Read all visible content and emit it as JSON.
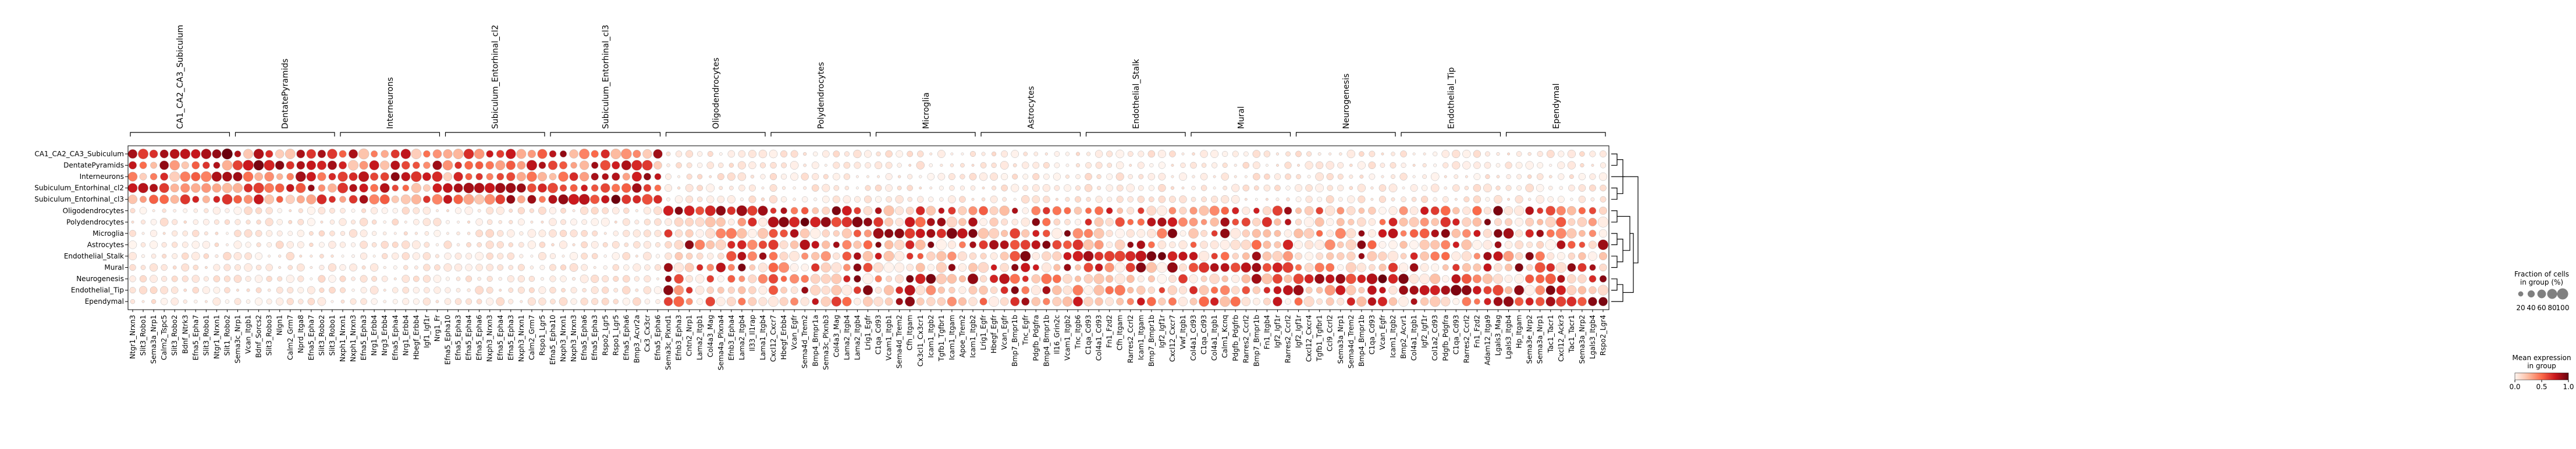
{
  "chart_data": {
    "type": "dotplot",
    "title": "",
    "xlabel": "",
    "ylabel": "",
    "rows": [
      "CA1_CA2_CA3_Subiculum",
      "DentatePyramids",
      "Interneurons",
      "Subiculum_Entorhinal_cl2",
      "Subiculum_Entorhinal_cl3",
      "Oligodendrocytes",
      "Polydendrocytes",
      "Microglia",
      "Astrocytes",
      "Endothelial_Stalk",
      "Mural",
      "Neurogenesis",
      "Endothelial_Tip",
      "Ependymal"
    ],
    "groups": [
      {
        "name": "CA1_CA2_CA3_Subiculum",
        "source": 0,
        "genes": [
          "Ntgr1_Nrxn3",
          "Slit3_Robo1",
          "Sema3a_Nrp1",
          "Calm2_Tspc5",
          "Slit3_Robo2",
          "Bdnf_Ntrk3",
          "Efna5_Epha7",
          "Slit3_Robo1",
          "Ntgr1_Nrxn1",
          "Slit1_Robo2"
        ]
      },
      {
        "name": "DentatePyramids",
        "source": 1,
        "genes": [
          "Sema3c_Nrp1",
          "Vcan_Itgb1",
          "Bdnf_Sorcs2",
          "Slit3_Robo3",
          "Nlgn1",
          "Calm2_Grm7",
          "Nprd_Itga8",
          "Efna5_Epha7",
          "Slit3_Robo2",
          "Slit3_Robo1"
        ]
      },
      {
        "name": "Interneurons",
        "source": 2,
        "genes": [
          "Nxph1_Nrxn1",
          "Nxph1_Nrxn3",
          "Efna5_Epha3",
          "Nrg1_Erbb4",
          "Nrg3_Erbb4",
          "Efna5_Epha4",
          "Nrg1_Erbb4",
          "Hbegf_Erbb4",
          "Igf1_Igf1r",
          "Nrg1_Fr"
        ]
      },
      {
        "name": "Subiculum_Entorhinal_cl2",
        "source": 3,
        "genes": [
          "Efna5_Epha10",
          "Efna5_Epha3",
          "Efna5_Epha4",
          "Efna5_Epha6",
          "Nxph3_Nrxn3",
          "Efna5_Epha4",
          "Efna5_Epha3",
          "Nxph3_Nrxn1",
          "Calm2_Grm7",
          "Rspo1_Lgr5"
        ]
      },
      {
        "name": "Subiculum_Entorhinal_cl3",
        "source": 4,
        "genes": [
          "Efna5_Epha10",
          "Nxph3_Nrxn1",
          "Nxph3_Nrxn3",
          "Efna5_Epha6",
          "Efna5_Epha3",
          "Rspo2_Lgr5",
          "Rspo1_Lgr5",
          "Efna5_Epha6",
          "Bmp3_Acvr2a",
          "Cx3_Cx3cr",
          "Efna5_Epha6"
        ]
      },
      {
        "name": "Oligodendrocytes",
        "source": 5,
        "genes": [
          "Sema3c_Plxnd1",
          "Efnb3_Epha3",
          "Cntn2_Nrp1",
          "Lama2_Itgb1",
          "Col4a3_Mag",
          "Sema4a_Plxna4",
          "Efnb3_Epha4",
          "Lama2_Itgb4",
          "Il33_Il1rap",
          "Lama1_Itgb4"
        ]
      },
      {
        "name": "Polydendrocytes",
        "source": 6,
        "genes": [
          "Cxcl12_Cxcr7",
          "Hbegf_Erbb4",
          "Vcan_Egfr",
          "Sema4d_Trem2",
          "Bmp4_Bmpr1a",
          "Sema3c_Plxnb3",
          "Col4a3_Mag",
          "Lama2_Itgb4",
          "Lama2_Itgb4",
          "Lrig1_Egfr"
        ]
      },
      {
        "name": "Microglia",
        "source": 7,
        "genes": [
          "C1qa_Cd93",
          "Vcam1_Itgb1",
          "Sema4d_Trem2",
          "Cfh_Itgam",
          "Cx3cl1_Cx3cr1",
          "Icam1_Itgb2",
          "Tgfb1_Tgfbr1",
          "Icam1_Itgam",
          "Apoe_Trem2",
          "Icam1_Itgb2"
        ]
      },
      {
        "name": "Astrocytes",
        "source": 8,
        "genes": [
          "Lrig1_Egfr",
          "Hbegf_Egfr",
          "Vcan_Egfr",
          "Bmp7_Bmpr1b",
          "Tnc_Egfr",
          "Pdgfb_Pdgfra",
          "Bmp4_Bmpr1b",
          "Il16_Grin2c",
          "Vcam1_Itgb2",
          "Tnc_Itgb6"
        ]
      },
      {
        "name": "Endothelial_Stalk",
        "source": 9,
        "genes": [
          "C1qa_Cd93",
          "Col4a1_Cd93",
          "Fn1_Fzd2",
          "Cfh_Itgam",
          "Rarres2_Ccrl2",
          "Icam1_Itgam",
          "Bmp7_Bmpr1b",
          "Igf2_Igf1r",
          "Cxcl12_Cxcr7",
          "Vwf_Itgb1"
        ]
      },
      {
        "name": "Mural",
        "source": 10,
        "genes": [
          "Col4a1_Cd93",
          "C1qa_Cd93",
          "Col4a1_Itgb1",
          "Calm1_Kcnq",
          "Pdgfb_Pdgfrb",
          "Rarres2_Ccrl2",
          "Bmp7_Bmpr1b",
          "Fn1_Itgb4",
          "Igf2_Igf1r",
          "Rarres2_Ccrl2"
        ]
      },
      {
        "name": "Neurogenesis",
        "source": 11,
        "genes": [
          "Igf2_Igf1r",
          "Cxcl12_Cxcr4",
          "Tgfb1_Tgfbr1",
          "Ccl9_Ccrl2",
          "Sema3a_Nrp1",
          "Sema4d_Trem2",
          "Bmp4_Bmpr1b",
          "C1qa_Cd93",
          "Vcan_Egfr",
          "Icam1_Itgb2"
        ]
      },
      {
        "name": "Endothelial_Tip",
        "source": 12,
        "genes": [
          "Bmp2_Acvr1",
          "Col4a1_Itgb1",
          "Igf2_Igf1r",
          "Col1a2_Cd93",
          "Pdgfb_Pdgfra",
          "C1qa_Cd93",
          "Rarres2_Ccrl2",
          "Fn1_Fzd2",
          "Adam12_Itga9",
          "Lgals3_Mag"
        ]
      },
      {
        "name": "Ependymal",
        "source": 13,
        "genes": [
          "Lgals3_Itgb4",
          "Hp_Itgam",
          "Sema3e_Nrp2",
          "Sema3a_Nrp1",
          "Tac1_Tacr1",
          "Cxcl12_Ackr3",
          "Tac1_Tacr1",
          "Sema3a_Nrp2",
          "Lgals3_Itgb4",
          "Rspo2_Lgr4"
        ]
      }
    ],
    "color_scale": {
      "name": "Reds",
      "min": 0.0,
      "max": 1.0,
      "colors": [
        "#fff5f0",
        "#fdbba0",
        "#fb6a4a",
        "#cb181d",
        "#67000d"
      ]
    },
    "size_legend": {
      "title_line1": "Fraction of cells",
      "title_line2": "in group (%)",
      "values": [
        20,
        40,
        60,
        80,
        100
      ],
      "labels": [
        "20",
        "40",
        "60",
        "80",
        "100"
      ]
    },
    "color_legend": {
      "title_line1": "Mean expression",
      "title_line2": "in group",
      "ticks": [
        0.0,
        0.5,
        1.0
      ],
      "labels": [
        "0.0",
        "0.5",
        "1.0"
      ]
    },
    "dendrogram": "right",
    "pattern_seed": 11
  }
}
